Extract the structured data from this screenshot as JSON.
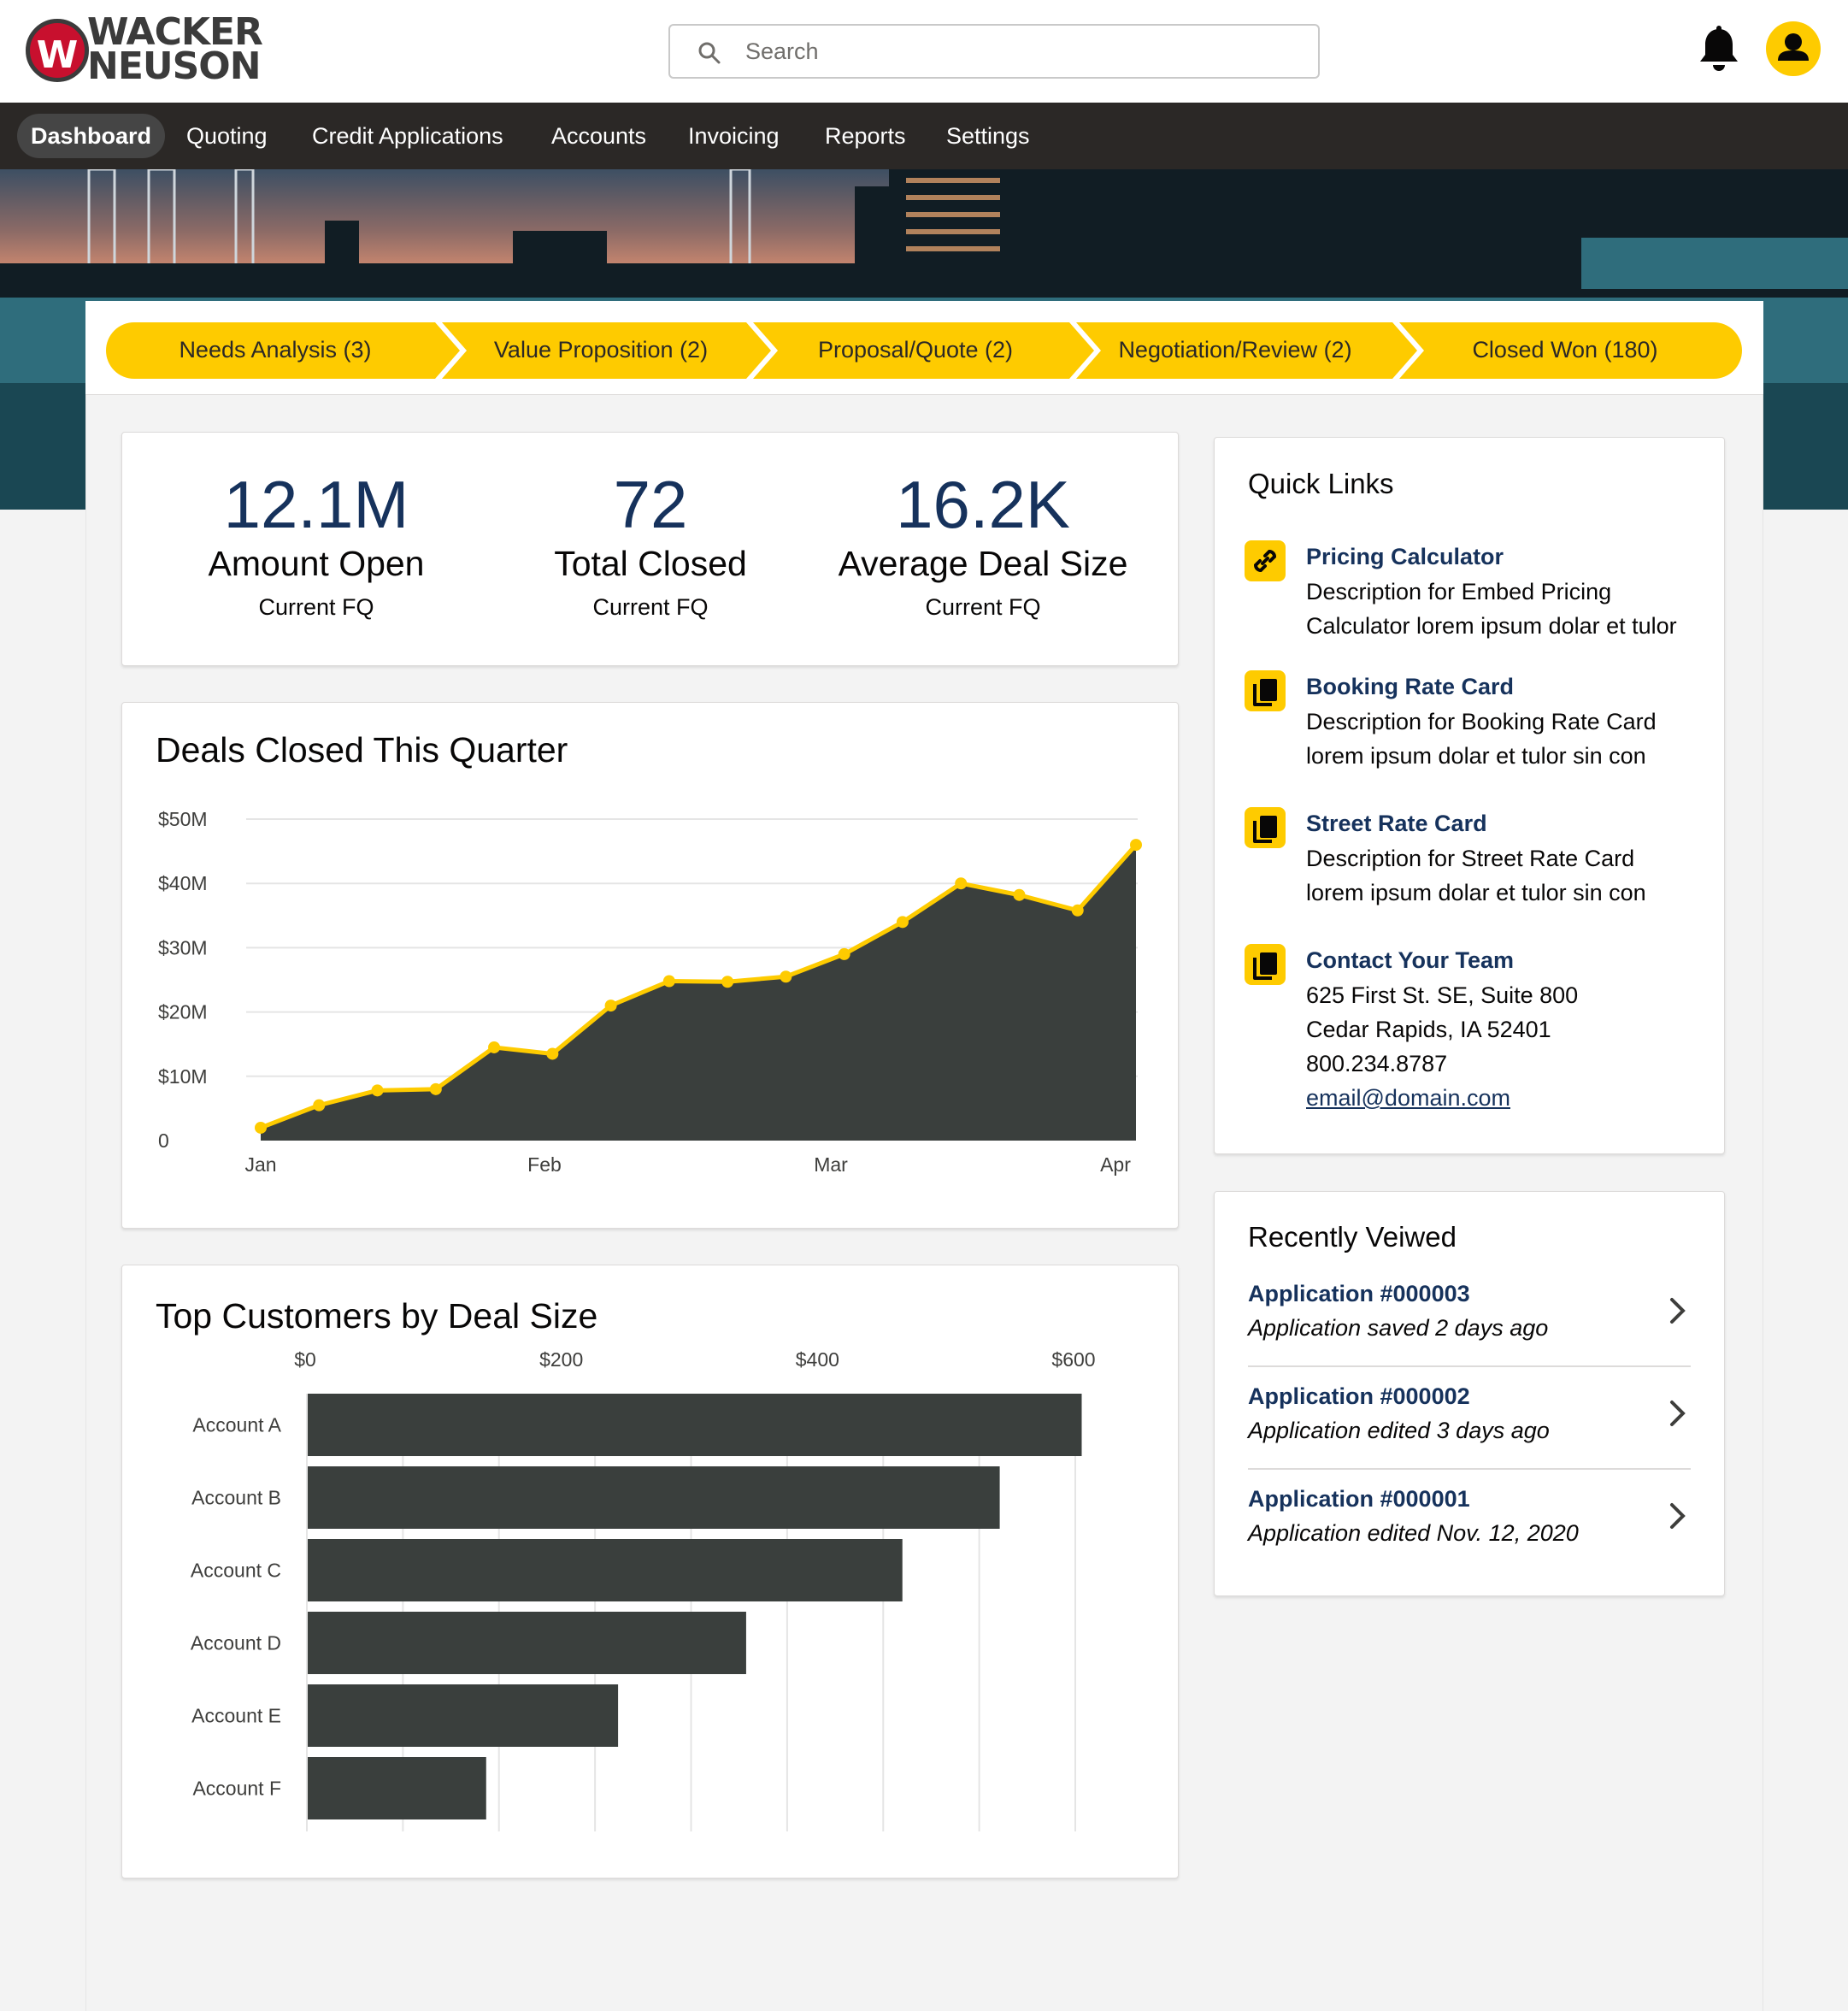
{
  "brand": {
    "logo_text_1": "WACKER",
    "logo_text_2": "NEUSON",
    "logo_mark": "W",
    "accent": "#fecb00",
    "primary_text": "#16325c",
    "chart_fill": "#3a3f3d"
  },
  "search": {
    "placeholder": "Search",
    "icon": "search-icon"
  },
  "header_icons": {
    "notifications": "bell-icon",
    "user": "user-avatar-icon"
  },
  "nav": {
    "items": [
      {
        "label": "Dashboard",
        "active": true
      },
      {
        "label": "Quoting"
      },
      {
        "label": "Credit Applications"
      },
      {
        "label": "Accounts"
      },
      {
        "label": "Invoicing"
      },
      {
        "label": "Reports"
      },
      {
        "label": "Settings"
      }
    ]
  },
  "path": {
    "stages": [
      {
        "label": "Needs Analysis (3)"
      },
      {
        "label": "Value Proposition (2)"
      },
      {
        "label": "Proposal/Quote (2)"
      },
      {
        "label": "Negotiation/Review (2)"
      },
      {
        "label": "Closed Won (180)"
      }
    ]
  },
  "kpis": [
    {
      "value": "12.1M",
      "title": "Amount Open",
      "sub": "Current FQ"
    },
    {
      "value": "72",
      "title": "Total Closed",
      "sub": "Current FQ"
    },
    {
      "value": "16.2K",
      "title": "Average Deal Size",
      "sub": "Current FQ"
    }
  ],
  "deals_chart": {
    "title": "Deals Closed This Quarter"
  },
  "customers_chart": {
    "title": "Top Customers by Deal Size"
  },
  "chart_data": [
    {
      "type": "area",
      "title": "Deals Closed This Quarter",
      "y_ticks": [
        "$50M",
        "$40M",
        "$30M",
        "$20M",
        "$10M",
        "0"
      ],
      "x_ticks": [
        "Jan",
        "Feb",
        "Mar",
        "Apr"
      ],
      "ylim": [
        0,
        50
      ],
      "grid": true,
      "series": [
        {
          "values": [
            2,
            5.5,
            7.8,
            8,
            14.5,
            13.5,
            21,
            24.8,
            24.7,
            25.5,
            29,
            34,
            40,
            38.2,
            35.8,
            46
          ]
        }
      ]
    },
    {
      "type": "bar",
      "orientation": "horizontal",
      "title": "Top Customers by Deal Size",
      "x_ticks": [
        "$0",
        "$200",
        "$400",
        "$600"
      ],
      "xlim": [
        0,
        600
      ],
      "grid": true,
      "categories": [
        "Account A",
        "Account B",
        "Account C",
        "Account D",
        "Account E",
        "Account F"
      ],
      "values": [
        605,
        541,
        465,
        343,
        243,
        140
      ]
    }
  ],
  "quick_links": {
    "title": "Quick Links",
    "items": [
      {
        "icon": "link-icon",
        "title": "Pricing Calculator",
        "lines": [
          "Description for Embed Pricing",
          "Calculator lorem ipsum dolar et tulor"
        ]
      },
      {
        "icon": "copy-document-icon",
        "title": "Booking Rate Card",
        "lines": [
          "Description for Booking Rate Card",
          "lorem ipsum dolar et tulor sin con"
        ]
      },
      {
        "icon": "copy-document-icon",
        "title": "Street Rate Card",
        "lines": [
          "Description for Street Rate Card",
          "lorem ipsum dolar et tulor sin con"
        ]
      },
      {
        "icon": "copy-document-icon",
        "title": "Contact Your Team",
        "lines": [
          "625 First St. SE, Suite 800",
          "Cedar Rapids, IA 52401",
          "800.234.8787"
        ],
        "email": "email@domain.com"
      }
    ]
  },
  "recently_viewed": {
    "title": "Recently Veiwed",
    "items": [
      {
        "title": "Application #000003",
        "sub": "Application saved 2 days ago"
      },
      {
        "title": "Application #000002",
        "sub": "Application edited 3 days ago"
      },
      {
        "title": "Application #000001",
        "sub": "Application edited Nov. 12, 2020"
      }
    ]
  }
}
